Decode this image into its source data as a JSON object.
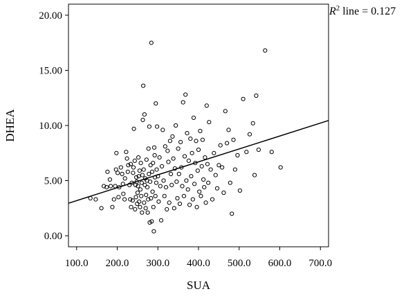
{
  "chart_data": {
    "type": "scatter",
    "xlabel": "SUA",
    "ylabel": "DHEA",
    "xlim": [
      80,
      720
    ],
    "ylim": [
      -1.0,
      21.0
    ],
    "x_ticks": [
      "100.0",
      "200.0",
      "300.0",
      "400.0",
      "500.0",
      "600.0",
      "700.0"
    ],
    "y_ticks": [
      "0.00",
      "5.00",
      "10.00",
      "15.00",
      "20.00"
    ],
    "annotation": {
      "r": "R",
      "sup": "2",
      "rest": " line = 0.127"
    },
    "fit_line": {
      "x": [
        80,
        720
      ],
      "y": [
        2.95,
        10.45
      ]
    },
    "points": [
      [
        134,
        3.4
      ],
      [
        147,
        3.3
      ],
      [
        161,
        2.5
      ],
      [
        167,
        4.5
      ],
      [
        174,
        4.4
      ],
      [
        176,
        5.8
      ],
      [
        182,
        5.1
      ],
      [
        184,
        4.5
      ],
      [
        188,
        2.6
      ],
      [
        192,
        3.3
      ],
      [
        195,
        4.5
      ],
      [
        197,
        6.0
      ],
      [
        198,
        7.5
      ],
      [
        201,
        5.7
      ],
      [
        203,
        3.5
      ],
      [
        205,
        4.4
      ],
      [
        209,
        6.2
      ],
      [
        212,
        5.6
      ],
      [
        214,
        4.7
      ],
      [
        215,
        3.8
      ],
      [
        218,
        3.3
      ],
      [
        219,
        5.2
      ],
      [
        222,
        7.6
      ],
      [
        224,
        7.0
      ],
      [
        226,
        5.8
      ],
      [
        227,
        6.4
      ],
      [
        230,
        4.6
      ],
      [
        232,
        3.3
      ],
      [
        233,
        6.5
      ],
      [
        234,
        2.6
      ],
      [
        236,
        4.8
      ],
      [
        238,
        3.2
      ],
      [
        239,
        5.7
      ],
      [
        240,
        6.2
      ],
      [
        241,
        9.7
      ],
      [
        243,
        6.8
      ],
      [
        244,
        2.4
      ],
      [
        245,
        4.6
      ],
      [
        246,
        3.5
      ],
      [
        247,
        5.3
      ],
      [
        248,
        4.9
      ],
      [
        249,
        2.9
      ],
      [
        250,
        3.9
      ],
      [
        251,
        4.5
      ],
      [
        252,
        7.1
      ],
      [
        253,
        5.4
      ],
      [
        254,
        3.1
      ],
      [
        255,
        5.9
      ],
      [
        256,
        2.6
      ],
      [
        257,
        4.2
      ],
      [
        258,
        6.6
      ],
      [
        259,
        3.6
      ],
      [
        260,
        4.8
      ],
      [
        261,
        2.1
      ],
      [
        262,
        5.5
      ],
      [
        263,
        10.5
      ],
      [
        264,
        13.6
      ],
      [
        265,
        6.0
      ],
      [
        266,
        3.0
      ],
      [
        267,
        11.0
      ],
      [
        268,
        4.6
      ],
      [
        269,
        5.2
      ],
      [
        270,
        2.5
      ],
      [
        271,
        3.7
      ],
      [
        272,
        6.9
      ],
      [
        273,
        5.0
      ],
      [
        274,
        4.4
      ],
      [
        275,
        2.1
      ],
      [
        276,
        3.3
      ],
      [
        277,
        7.9
      ],
      [
        278,
        5.6
      ],
      [
        279,
        9.9
      ],
      [
        280,
        1.2
      ],
      [
        281,
        4.9
      ],
      [
        282,
        6.4
      ],
      [
        283,
        3.4
      ],
      [
        284,
        17.5
      ],
      [
        285,
        1.3
      ],
      [
        286,
        5.8
      ],
      [
        287,
        4.0
      ],
      [
        288,
        6.6
      ],
      [
        289,
        2.6
      ],
      [
        290,
        0.4
      ],
      [
        291,
        8.0
      ],
      [
        292,
        7.3
      ],
      [
        293,
        5.3
      ],
      [
        294,
        3.6
      ],
      [
        295,
        12.0
      ],
      [
        296,
        4.8
      ],
      [
        297,
        6.0
      ],
      [
        298,
        9.9
      ],
      [
        300,
        5.4
      ],
      [
        302,
        3.1
      ],
      [
        304,
        7.1
      ],
      [
        306,
        4.5
      ],
      [
        308,
        1.4
      ],
      [
        310,
        6.3
      ],
      [
        312,
        9.6
      ],
      [
        314,
        5.0
      ],
      [
        316,
        3.6
      ],
      [
        318,
        8.1
      ],
      [
        320,
        4.4
      ],
      [
        322,
        2.4
      ],
      [
        324,
        7.7
      ],
      [
        326,
        6.7
      ],
      [
        328,
        3.0
      ],
      [
        330,
        8.6
      ],
      [
        332,
        5.6
      ],
      [
        334,
        4.6
      ],
      [
        336,
        9.0
      ],
      [
        338,
        7.0
      ],
      [
        340,
        2.5
      ],
      [
        342,
        6.1
      ],
      [
        344,
        10.0
      ],
      [
        346,
        4.9
      ],
      [
        348,
        3.4
      ],
      [
        350,
        7.9
      ],
      [
        352,
        5.6
      ],
      [
        354,
        2.9
      ],
      [
        356,
        8.5
      ],
      [
        358,
        6.2
      ],
      [
        360,
        4.5
      ],
      [
        362,
        12.1
      ],
      [
        364,
        3.6
      ],
      [
        366,
        7.2
      ],
      [
        368,
        12.8
      ],
      [
        370,
        5.0
      ],
      [
        372,
        9.3
      ],
      [
        374,
        4.2
      ],
      [
        376,
        6.8
      ],
      [
        378,
        2.8
      ],
      [
        380,
        8.8
      ],
      [
        382,
        5.4
      ],
      [
        384,
        7.5
      ],
      [
        386,
        3.3
      ],
      [
        388,
        10.7
      ],
      [
        390,
        4.7
      ],
      [
        392,
        6.6
      ],
      [
        394,
        8.6
      ],
      [
        396,
        2.6
      ],
      [
        398,
        5.9
      ],
      [
        400,
        7.8
      ],
      [
        402,
        4.0
      ],
      [
        404,
        9.5
      ],
      [
        406,
        3.6
      ],
      [
        408,
        6.3
      ],
      [
        410,
        8.7
      ],
      [
        412,
        5.1
      ],
      [
        414,
        4.4
      ],
      [
        416,
        7.1
      ],
      [
        418,
        3.0
      ],
      [
        420,
        11.8
      ],
      [
        422,
        6.5
      ],
      [
        424,
        4.8
      ],
      [
        426,
        10.3
      ],
      [
        430,
        6.0
      ],
      [
        434,
        3.3
      ],
      [
        438,
        7.5
      ],
      [
        442,
        5.5
      ],
      [
        446,
        4.3
      ],
      [
        450,
        6.4
      ],
      [
        454,
        8.2
      ],
      [
        458,
        6.2
      ],
      [
        462,
        3.9
      ],
      [
        466,
        11.3
      ],
      [
        470,
        8.4
      ],
      [
        474,
        9.6
      ],
      [
        478,
        4.8
      ],
      [
        482,
        2.0
      ],
      [
        486,
        8.7
      ],
      [
        490,
        6.0
      ],
      [
        496,
        7.3
      ],
      [
        502,
        4.1
      ],
      [
        510,
        12.4
      ],
      [
        518,
        7.6
      ],
      [
        526,
        9.2
      ],
      [
        534,
        10.2
      ],
      [
        538,
        5.5
      ],
      [
        542,
        12.7
      ],
      [
        548,
        7.8
      ],
      [
        564,
        16.8
      ],
      [
        580,
        7.6
      ],
      [
        602,
        6.2
      ]
    ]
  }
}
